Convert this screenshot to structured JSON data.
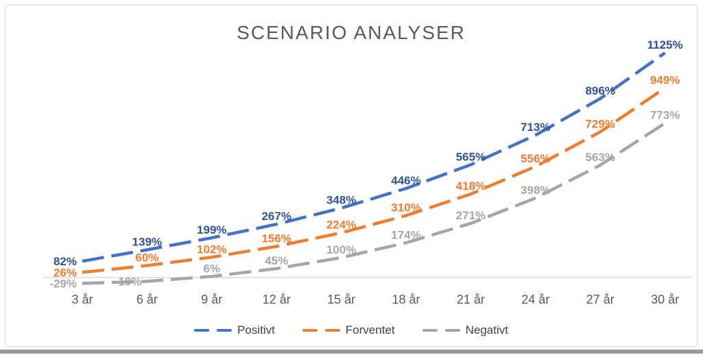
{
  "title": "SCENARIO ANALYSER",
  "chart_data": {
    "type": "line",
    "title": "SCENARIO ANALYSER",
    "categories": [
      "3 år",
      "6 år",
      "9 år",
      "12 år",
      "15 år",
      "18 år",
      "21 år",
      "24 år",
      "27 år",
      "30 år"
    ],
    "series": [
      {
        "name": "Positivt",
        "color": "#4472C4",
        "label_color": "#31538F",
        "values": [
          82,
          139,
          199,
          267,
          348,
          446,
          565,
          713,
          896,
          1125
        ]
      },
      {
        "name": "Forventet",
        "color": "#ED7D31",
        "label_color": "#ED7D31",
        "values": [
          26,
          60,
          102,
          156,
          224,
          310,
          418,
          556,
          729,
          949
        ]
      },
      {
        "name": "Negativt",
        "color": "#A6A6A6",
        "label_color": "#A6A6A6",
        "values": [
          -29,
          -19,
          6,
          45,
          100,
          174,
          271,
          398,
          563,
          773
        ]
      }
    ],
    "unit": "%",
    "line_style": "dashed",
    "data_labels": true,
    "grid": false,
    "legend_position": "bottom",
    "ylim": [
      -60,
      1180
    ],
    "axis_line_value": 0,
    "axis_line_color": "#D9D9D9",
    "text_color": "#595959"
  }
}
